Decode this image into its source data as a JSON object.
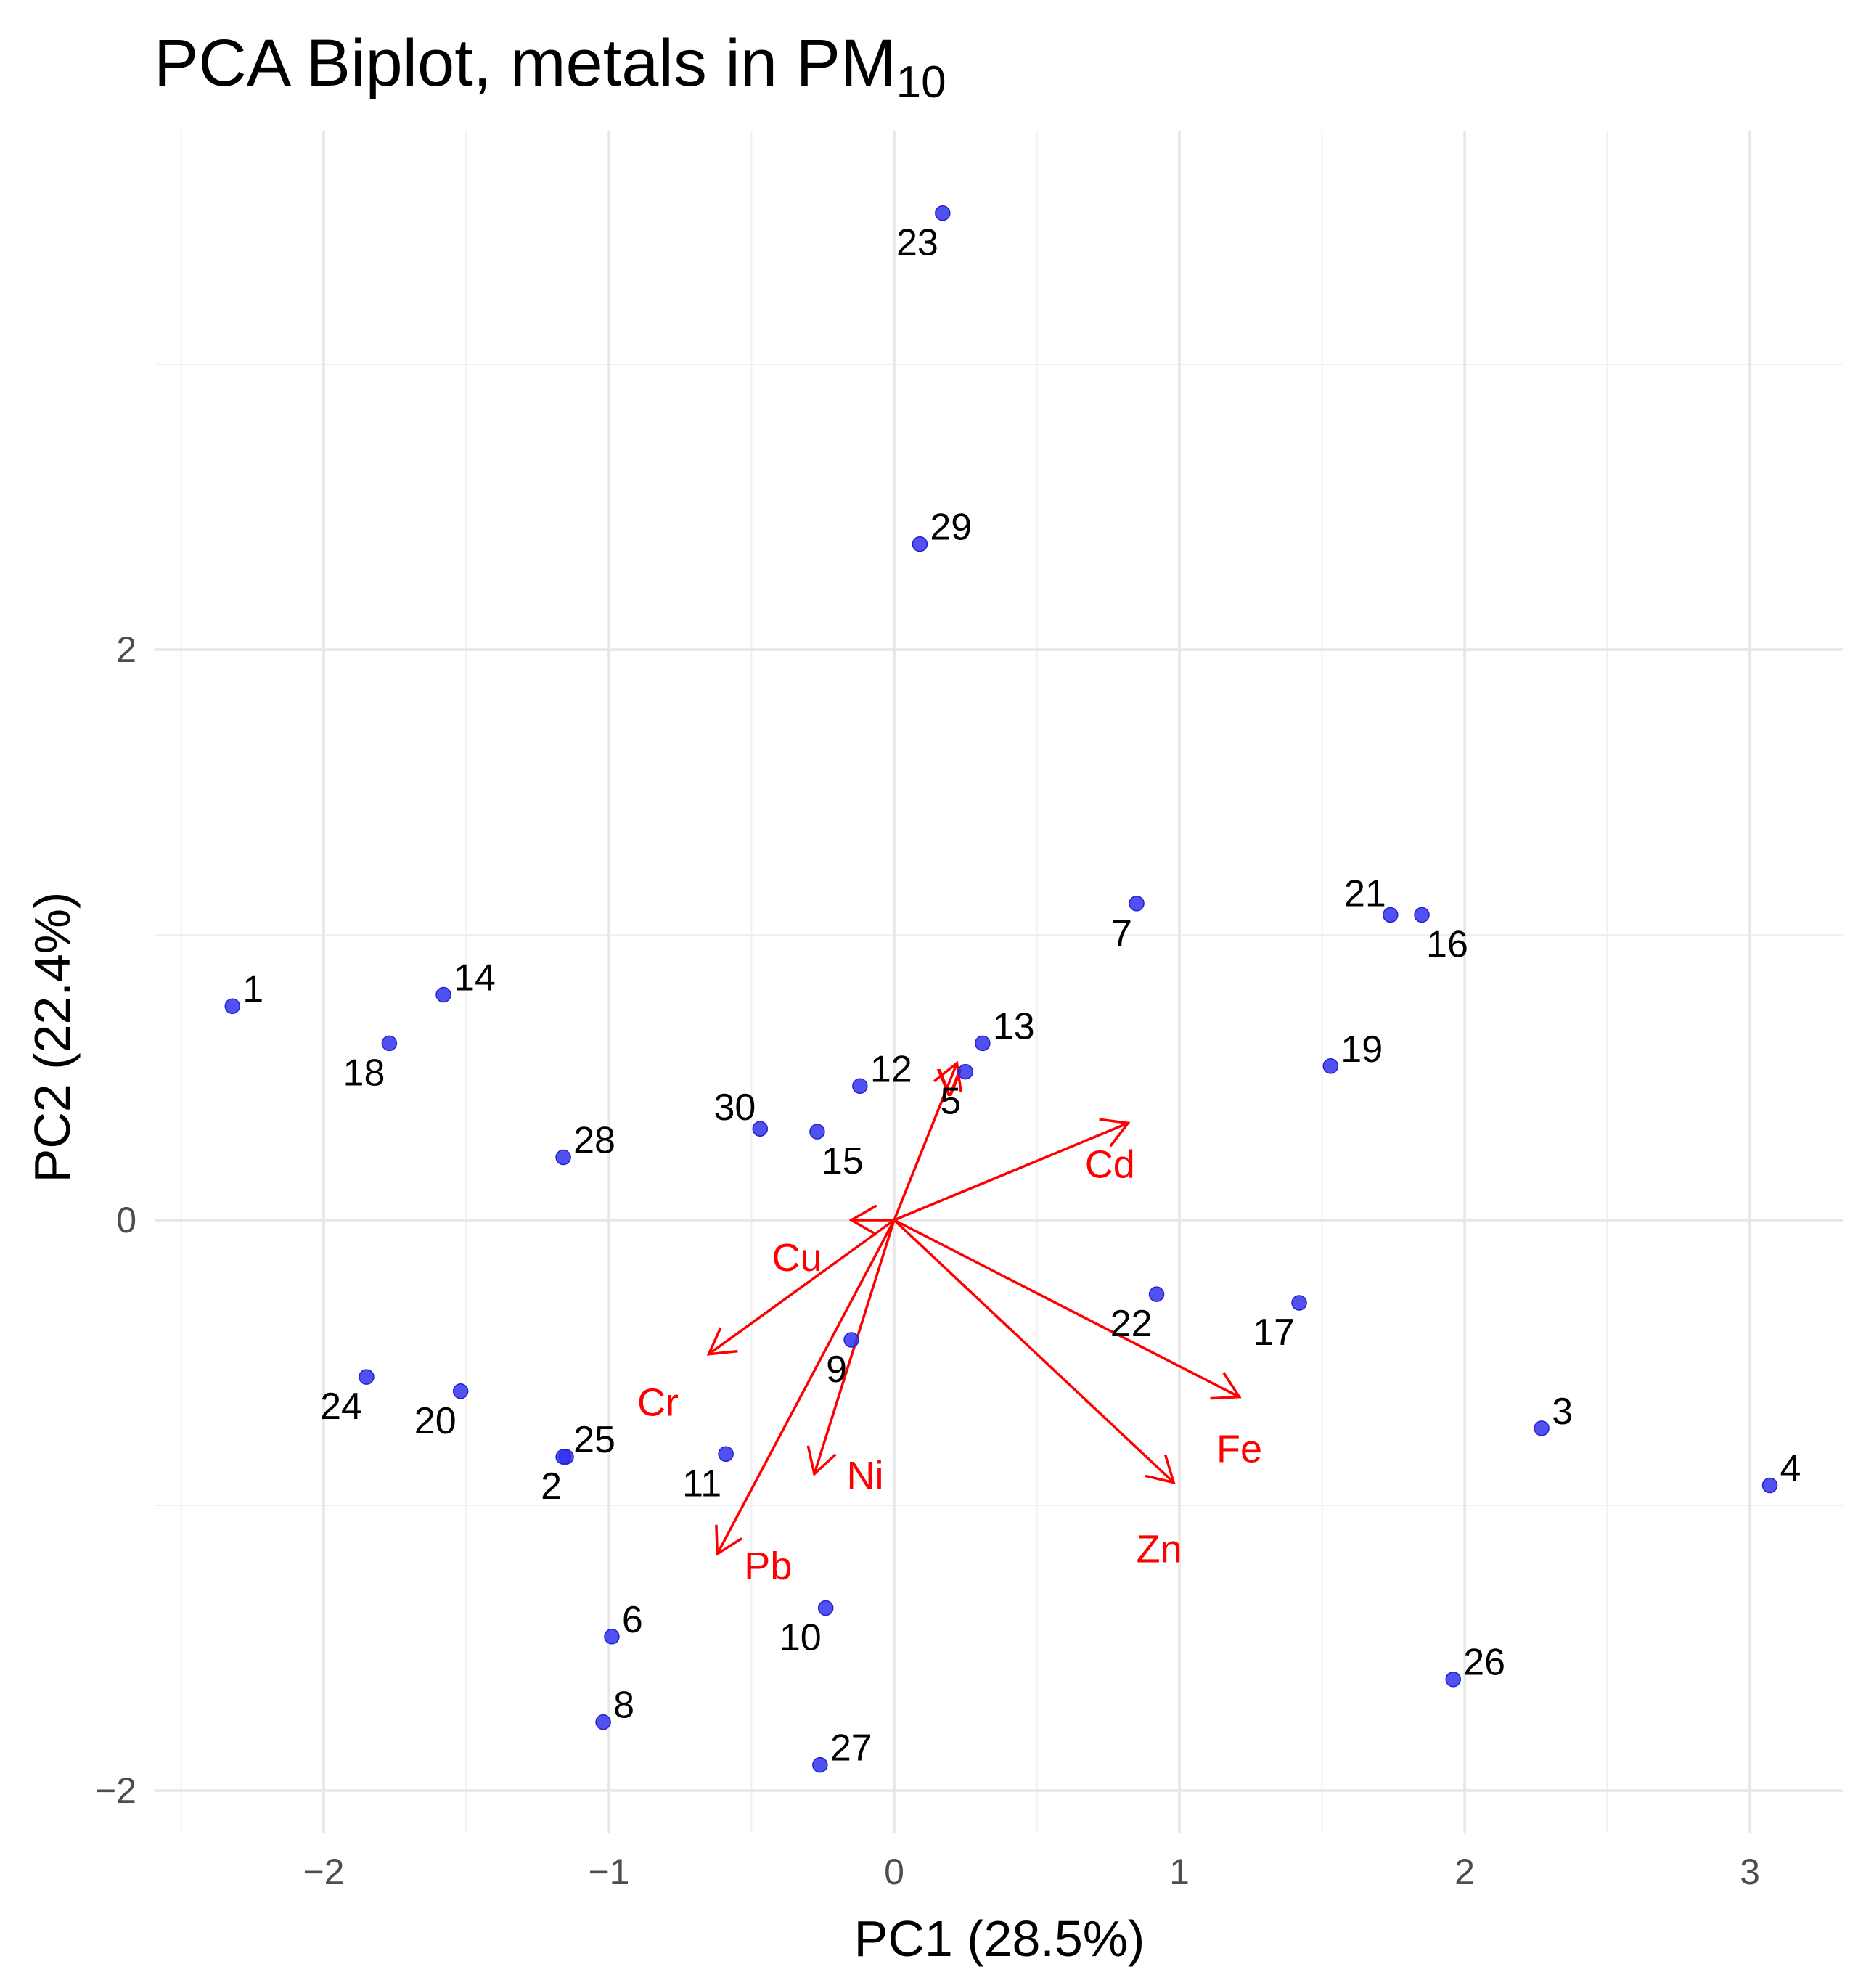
{
  "title": {
    "main": "PCA Biplot, metals in PM",
    "subscript": "10"
  },
  "chart_data": {
    "type": "scatter",
    "subtype": "pca-biplot",
    "xlabel": "PC1 (28.5%)",
    "ylabel": "PC2 (22.4%)",
    "xlim": [
      -2.5,
      3.3
    ],
    "ylim": [
      -2.1,
      3.8
    ],
    "xticks": [
      -2,
      -1,
      0,
      1,
      2,
      3
    ],
    "yticks": [
      -2,
      0,
      2
    ],
    "xtick_labels": [
      "−2",
      "−1",
      "0",
      "1",
      "2",
      "3"
    ],
    "ytick_labels": [
      "−2",
      "0",
      "2"
    ],
    "grid": true,
    "point_color": "#3333ee",
    "arrow_color": "#ff0000",
    "observations": [
      {
        "label": "1",
        "x": -2.32,
        "y": 0.75,
        "label_pos": "right"
      },
      {
        "label": "2",
        "x": -1.15,
        "y": -0.83,
        "label_pos": "below-left"
      },
      {
        "label": "3",
        "x": 2.27,
        "y": -0.73,
        "label_pos": "right"
      },
      {
        "label": "4",
        "x": 3.07,
        "y": -0.93,
        "label_pos": "right"
      },
      {
        "label": "5",
        "x": 0.25,
        "y": 0.52,
        "label_pos": "below-left"
      },
      {
        "label": "6",
        "x": -0.99,
        "y": -1.46,
        "label_pos": "right"
      },
      {
        "label": "7",
        "x": 0.85,
        "y": 1.11,
        "label_pos": "below-left"
      },
      {
        "label": "8",
        "x": -1.02,
        "y": -1.76,
        "label_pos": "right"
      },
      {
        "label": "9",
        "x": -0.15,
        "y": -0.42,
        "label_pos": "below-left"
      },
      {
        "label": "10",
        "x": -0.24,
        "y": -1.36,
        "label_pos": "below-left"
      },
      {
        "label": "11",
        "x": -0.59,
        "y": -0.82,
        "label_pos": "below-left"
      },
      {
        "label": "12",
        "x": -0.12,
        "y": 0.47,
        "label_pos": "right"
      },
      {
        "label": "13",
        "x": 0.31,
        "y": 0.62,
        "label_pos": "right"
      },
      {
        "label": "14",
        "x": -1.58,
        "y": 0.79,
        "label_pos": "right"
      },
      {
        "label": "15",
        "x": -0.27,
        "y": 0.31,
        "label_pos": "below-right"
      },
      {
        "label": "16",
        "x": 1.85,
        "y": 1.07,
        "label_pos": "below-right"
      },
      {
        "label": "17",
        "x": 1.42,
        "y": -0.29,
        "label_pos": "below-left"
      },
      {
        "label": "18",
        "x": -1.77,
        "y": 0.62,
        "label_pos": "below-left"
      },
      {
        "label": "19",
        "x": 1.53,
        "y": 0.54,
        "label_pos": "right"
      },
      {
        "label": "20",
        "x": -1.52,
        "y": -0.6,
        "label_pos": "below-left"
      },
      {
        "label": "21",
        "x": 1.74,
        "y": 1.07,
        "label_pos": "above-left"
      },
      {
        "label": "22",
        "x": 0.92,
        "y": -0.26,
        "label_pos": "below-left"
      },
      {
        "label": "23",
        "x": 0.17,
        "y": 3.53,
        "label_pos": "below-left"
      },
      {
        "label": "24",
        "x": -1.85,
        "y": -0.55,
        "label_pos": "below-left"
      },
      {
        "label": "25",
        "x": -1.16,
        "y": -0.83,
        "label_pos": "right"
      },
      {
        "label": "26",
        "x": 1.96,
        "y": -1.61,
        "label_pos": "right"
      },
      {
        "label": "27",
        "x": -0.26,
        "y": -1.91,
        "label_pos": "right"
      },
      {
        "label": "28",
        "x": -1.16,
        "y": 0.22,
        "label_pos": "right"
      },
      {
        "label": "29",
        "x": 0.09,
        "y": 2.37,
        "label_pos": "right"
      },
      {
        "label": "30",
        "x": -0.47,
        "y": 0.32,
        "label_pos": "above-left"
      }
    ],
    "loadings": [
      {
        "label": "V",
        "x": 0.22,
        "y": 0.55
      },
      {
        "label": "Cd",
        "x": 0.82,
        "y": 0.34
      },
      {
        "label": "Cu",
        "x": -0.15,
        "y": 0.0
      },
      {
        "label": "Cr",
        "x": -0.65,
        "y": -0.47
      },
      {
        "label": "Pb",
        "x": -0.62,
        "y": -1.17
      },
      {
        "label": "Ni",
        "x": -0.28,
        "y": -0.89
      },
      {
        "label": "Fe",
        "x": 1.21,
        "y": -0.62
      },
      {
        "label": "Zn",
        "x": 0.98,
        "y": -0.92
      }
    ]
  }
}
